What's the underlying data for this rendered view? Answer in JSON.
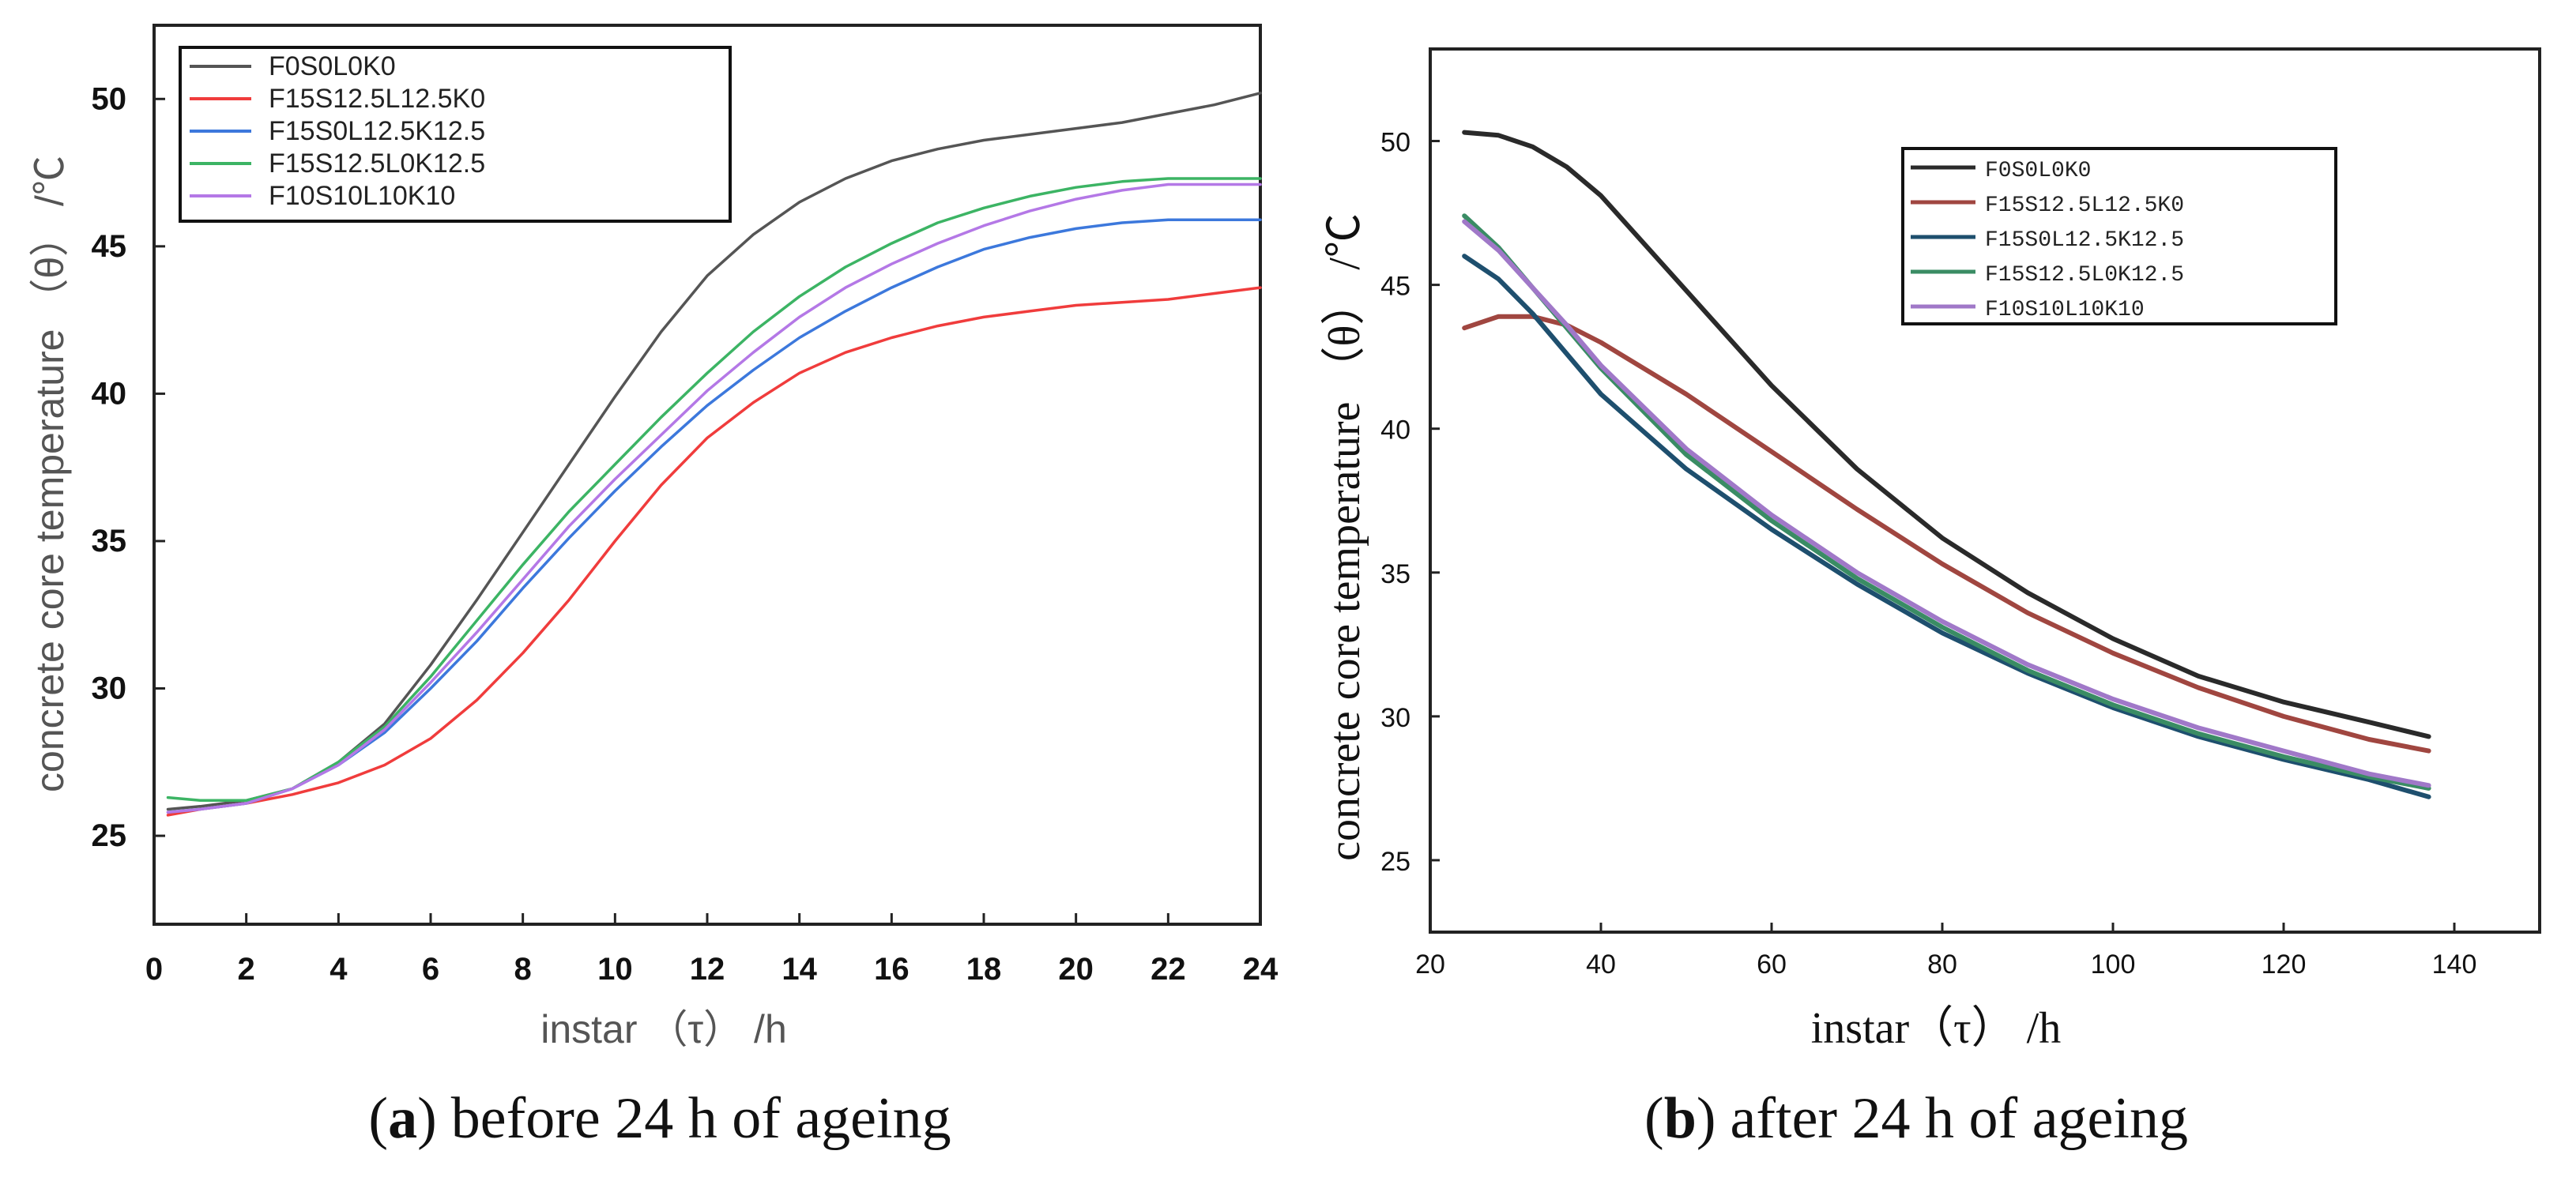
{
  "chart_data": [
    {
      "type": "line",
      "xlabel": "instar （τ） /h",
      "ylabel": "concrete core temperature （θ） /℃",
      "xlim": [
        0,
        24
      ],
      "ylim": [
        22,
        52.5
      ],
      "x_ticks": [
        "0",
        "2",
        "4",
        "6",
        "8",
        "10",
        "12",
        "14",
        "16",
        "18",
        "20",
        "22",
        "24"
      ],
      "y_ticks": [
        "25",
        "30",
        "35",
        "40",
        "45",
        "50"
      ],
      "caption_letter": "a",
      "caption_text": "before 24 h of ageing",
      "legend_position": "top-left",
      "series": [
        {
          "name": "F0S0L0K0",
          "color": "#555555",
          "x": [
            0.3,
            1,
            2,
            3,
            4,
            5,
            6,
            7,
            8,
            9,
            10,
            11,
            12,
            13,
            14,
            15,
            16,
            17,
            18,
            19,
            20,
            21,
            22,
            23,
            24
          ],
          "y": [
            25.9,
            26.0,
            26.2,
            26.6,
            27.5,
            28.8,
            30.8,
            33.0,
            35.3,
            37.6,
            39.9,
            42.1,
            44.0,
            45.4,
            46.5,
            47.3,
            47.9,
            48.3,
            48.6,
            48.8,
            49.0,
            49.2,
            49.5,
            49.8,
            50.2
          ]
        },
        {
          "name": "F15S12.5L12.5K0",
          "color": "#f03c3c",
          "x": [
            0.3,
            1,
            2,
            3,
            4,
            5,
            6,
            7,
            8,
            9,
            10,
            11,
            12,
            13,
            14,
            15,
            16,
            17,
            18,
            19,
            20,
            21,
            22,
            23,
            24
          ],
          "y": [
            25.7,
            25.9,
            26.1,
            26.4,
            26.8,
            27.4,
            28.3,
            29.6,
            31.2,
            33.0,
            35.0,
            36.9,
            38.5,
            39.7,
            40.7,
            41.4,
            41.9,
            42.3,
            42.6,
            42.8,
            43.0,
            43.1,
            43.2,
            43.4,
            43.6
          ]
        },
        {
          "name": "F15S0L12.5K12.5",
          "color": "#3c78dc",
          "x": [
            0.3,
            1,
            2,
            3,
            4,
            5,
            6,
            7,
            8,
            9,
            10,
            11,
            12,
            13,
            14,
            15,
            16,
            17,
            18,
            19,
            20,
            21,
            22,
            23,
            24
          ],
          "y": [
            25.8,
            25.9,
            26.1,
            26.6,
            27.4,
            28.5,
            30.0,
            31.6,
            33.4,
            35.1,
            36.7,
            38.2,
            39.6,
            40.8,
            41.9,
            42.8,
            43.6,
            44.3,
            44.9,
            45.3,
            45.6,
            45.8,
            45.9,
            45.9,
            45.9
          ]
        },
        {
          "name": "F15S12.5L0K12.5",
          "color": "#3cb464",
          "x": [
            0.3,
            1,
            2,
            3,
            4,
            5,
            6,
            7,
            8,
            9,
            10,
            11,
            12,
            13,
            14,
            15,
            16,
            17,
            18,
            19,
            20,
            21,
            22,
            23,
            24
          ],
          "y": [
            26.3,
            26.2,
            26.2,
            26.6,
            27.5,
            28.7,
            30.4,
            32.3,
            34.2,
            36.0,
            37.6,
            39.2,
            40.7,
            42.1,
            43.3,
            44.3,
            45.1,
            45.8,
            46.3,
            46.7,
            47.0,
            47.2,
            47.3,
            47.3,
            47.3
          ]
        },
        {
          "name": "F10S10L10K10",
          "color": "#b478e6",
          "x": [
            0.3,
            1,
            2,
            3,
            4,
            5,
            6,
            7,
            8,
            9,
            10,
            11,
            12,
            13,
            14,
            15,
            16,
            17,
            18,
            19,
            20,
            21,
            22,
            23,
            24
          ],
          "y": [
            25.8,
            25.9,
            26.1,
            26.6,
            27.4,
            28.6,
            30.2,
            31.9,
            33.7,
            35.5,
            37.1,
            38.6,
            40.1,
            41.4,
            42.6,
            43.6,
            44.4,
            45.1,
            45.7,
            46.2,
            46.6,
            46.9,
            47.1,
            47.1,
            47.1
          ]
        }
      ]
    },
    {
      "type": "line",
      "xlabel": "instar（τ） /h",
      "ylabel": "concrete core temperature （θ） /℃",
      "xlim": [
        20,
        150
      ],
      "ylim": [
        22.5,
        53.2
      ],
      "x_ticks": [
        "20",
        "40",
        "60",
        "80",
        "100",
        "120",
        "140"
      ],
      "y_ticks": [
        "25",
        "30",
        "35",
        "40",
        "45",
        "50"
      ],
      "caption_letter": "b",
      "caption_text": "after 24 h of ageing",
      "legend_position": "top-right",
      "series": [
        {
          "name": "F0S0L0K0",
          "color": "#2a2a2a",
          "x": [
            24,
            28,
            32,
            36,
            40,
            50,
            60,
            70,
            80,
            90,
            100,
            110,
            120,
            130,
            137
          ],
          "y": [
            50.3,
            50.2,
            49.8,
            49.1,
            48.1,
            44.8,
            41.5,
            38.6,
            36.2,
            34.3,
            32.7,
            31.4,
            30.5,
            29.8,
            29.3
          ]
        },
        {
          "name": "F15S12.5L12.5K0",
          "color": "#a04640",
          "x": [
            24,
            28,
            32,
            36,
            40,
            50,
            60,
            70,
            80,
            90,
            100,
            110,
            120,
            130,
            137
          ],
          "y": [
            43.5,
            43.9,
            43.9,
            43.6,
            43.0,
            41.2,
            39.2,
            37.2,
            35.3,
            33.6,
            32.2,
            31.0,
            30.0,
            29.2,
            28.8
          ]
        },
        {
          "name": "F15S0L12.5K12.5",
          "color": "#1e4f6e",
          "x": [
            24,
            28,
            32,
            36,
            40,
            50,
            60,
            70,
            80,
            90,
            100,
            110,
            120,
            130,
            137
          ],
          "y": [
            46.0,
            45.2,
            44.0,
            42.6,
            41.2,
            38.6,
            36.5,
            34.6,
            32.9,
            31.5,
            30.3,
            29.3,
            28.5,
            27.8,
            27.2
          ]
        },
        {
          "name": "F15S12.5L0K12.5",
          "color": "#3a8c64",
          "x": [
            24,
            28,
            32,
            36,
            40,
            50,
            60,
            70,
            80,
            90,
            100,
            110,
            120,
            130,
            137
          ],
          "y": [
            47.4,
            46.3,
            44.9,
            43.5,
            42.1,
            39.1,
            36.8,
            34.8,
            33.1,
            31.6,
            30.4,
            29.4,
            28.6,
            27.9,
            27.5
          ]
        },
        {
          "name": "F10S10L10K10",
          "color": "#a078c8",
          "x": [
            24,
            28,
            32,
            36,
            40,
            50,
            60,
            70,
            80,
            90,
            100,
            110,
            120,
            130,
            137
          ],
          "y": [
            47.2,
            46.2,
            44.9,
            43.6,
            42.2,
            39.3,
            37.0,
            35.0,
            33.3,
            31.8,
            30.6,
            29.6,
            28.8,
            28.0,
            27.6
          ]
        }
      ]
    }
  ]
}
